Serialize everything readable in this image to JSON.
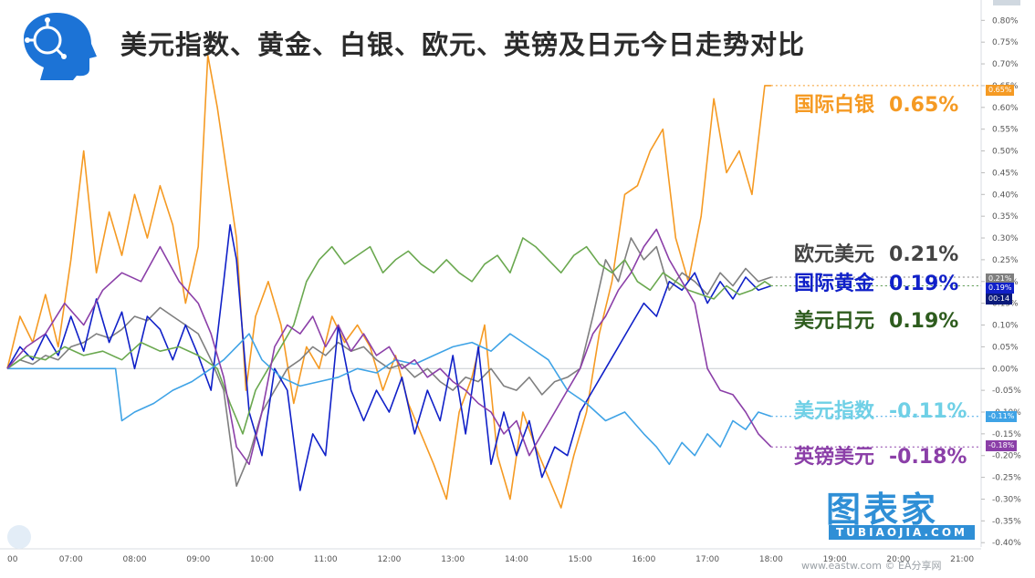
{
  "header": {
    "title": "美元指数、黄金、白银、欧元、英镑及日元今日走势对比"
  },
  "watermark": {
    "brand": "图表家",
    "sub": "TUBIAOJIA.COM"
  },
  "source_text": "www.eastw.com © EA分享网",
  "time_badge": "00:14",
  "colors": {
    "silver": "#f59a23",
    "eurusd": "#7f7f7f",
    "gold": "#1020c8",
    "usdjpy": "#6aa84f",
    "dxy": "#3fa3e6",
    "gbpusd": "#8b3fa8"
  },
  "chart_data": {
    "type": "line",
    "title": "美元指数、黄金、白银、欧元、英镑及日元今日走势对比",
    "xlabel": "",
    "ylabel": "",
    "x_ticks": [
      "00",
      "07:00",
      "08:00",
      "09:00",
      "10:00",
      "11:00",
      "12:00",
      "13:00",
      "14:00",
      "15:00",
      "16:00",
      "17:00",
      "18:00",
      "19:00",
      "20:00",
      "21:00"
    ],
    "y_ticks": [
      "0.80%",
      "0.75%",
      "0.70%",
      "0.65%",
      "0.60%",
      "0.55%",
      "0.50%",
      "0.45%",
      "0.40%",
      "0.35%",
      "0.30%",
      "0.25%",
      "0.20%",
      "0.15%",
      "0.10%",
      "0.05%",
      "0.00%",
      "-0.05%",
      "-0.10%",
      "-0.15%",
      "-0.20%",
      "-0.25%",
      "-0.30%",
      "-0.35%",
      "-0.40%"
    ],
    "ylim": [
      -0.41,
      0.83
    ],
    "xlim_hours": [
      6.0,
      21.3
    ],
    "grid": false,
    "legend_placement": "right",
    "series": [
      {
        "key": "silver",
        "name": "国际白银",
        "last_label": "0.65%",
        "last": 0.65,
        "x": [
          6.0,
          6.2,
          6.4,
          6.6,
          6.8,
          7.0,
          7.2,
          7.4,
          7.6,
          7.8,
          8.0,
          8.2,
          8.4,
          8.6,
          8.8,
          9.0,
          9.15,
          9.3,
          9.45,
          9.6,
          9.75,
          9.9,
          10.1,
          10.3,
          10.5,
          10.7,
          10.9,
          11.1,
          11.3,
          11.5,
          11.7,
          11.9,
          12.1,
          12.3,
          12.5,
          12.7,
          12.9,
          13.1,
          13.3,
          13.5,
          13.7,
          13.9,
          14.1,
          14.3,
          14.5,
          14.7,
          14.9,
          15.1,
          15.3,
          15.5,
          15.7,
          15.9,
          16.1,
          16.3,
          16.5,
          16.7,
          16.9,
          17.1,
          17.3,
          17.5,
          17.7,
          17.9,
          18.0
        ],
        "y": [
          0.0,
          0.12,
          0.06,
          0.17,
          0.05,
          0.25,
          0.5,
          0.22,
          0.36,
          0.26,
          0.4,
          0.3,
          0.42,
          0.33,
          0.15,
          0.28,
          0.72,
          0.6,
          0.45,
          0.3,
          -0.05,
          0.12,
          0.2,
          0.1,
          -0.08,
          0.05,
          0.0,
          0.12,
          0.06,
          0.1,
          0.05,
          -0.05,
          0.03,
          -0.08,
          -0.15,
          -0.22,
          -0.3,
          -0.1,
          -0.02,
          0.1,
          -0.2,
          -0.3,
          -0.1,
          -0.18,
          -0.25,
          -0.32,
          -0.2,
          -0.1,
          0.08,
          0.2,
          0.4,
          0.42,
          0.5,
          0.55,
          0.3,
          0.2,
          0.35,
          0.62,
          0.45,
          0.5,
          0.4,
          0.65,
          0.65
        ]
      },
      {
        "key": "eurusd",
        "name": "欧元美元",
        "last_label": "0.21%",
        "last": 0.21,
        "x": [
          6.0,
          6.2,
          6.4,
          6.6,
          6.8,
          7.0,
          7.2,
          7.4,
          7.6,
          7.8,
          8.0,
          8.2,
          8.4,
          8.6,
          8.8,
          9.0,
          9.2,
          9.4,
          9.6,
          9.8,
          10.0,
          10.2,
          10.4,
          10.6,
          10.8,
          11.0,
          11.2,
          11.4,
          11.6,
          11.8,
          12.0,
          12.2,
          12.4,
          12.6,
          12.8,
          13.0,
          13.2,
          13.4,
          13.6,
          13.8,
          14.0,
          14.2,
          14.4,
          14.6,
          14.8,
          15.0,
          15.2,
          15.4,
          15.6,
          15.8,
          16.0,
          16.2,
          16.4,
          16.6,
          16.8,
          17.0,
          17.2,
          17.4,
          17.6,
          17.8,
          18.0
        ],
        "y": [
          0.0,
          0.02,
          0.01,
          0.03,
          0.02,
          0.05,
          0.06,
          0.08,
          0.07,
          0.09,
          0.12,
          0.11,
          0.14,
          0.12,
          0.1,
          0.08,
          0.02,
          -0.05,
          -0.27,
          -0.2,
          -0.1,
          -0.05,
          0.0,
          0.02,
          0.05,
          0.03,
          0.06,
          0.04,
          0.05,
          0.02,
          0.0,
          0.01,
          -0.02,
          0.0,
          -0.03,
          -0.05,
          -0.02,
          -0.03,
          0.0,
          -0.04,
          -0.05,
          -0.02,
          -0.06,
          -0.03,
          -0.02,
          0.0,
          0.12,
          0.25,
          0.2,
          0.3,
          0.25,
          0.28,
          0.18,
          0.22,
          0.2,
          0.17,
          0.22,
          0.19,
          0.23,
          0.2,
          0.21
        ]
      },
      {
        "key": "gold",
        "name": "国际黄金",
        "last_label": "0.19%",
        "last": 0.19,
        "x": [
          6.0,
          6.2,
          6.4,
          6.6,
          6.8,
          7.0,
          7.2,
          7.4,
          7.6,
          7.8,
          8.0,
          8.2,
          8.4,
          8.6,
          8.8,
          9.0,
          9.2,
          9.4,
          9.5,
          9.6,
          9.8,
          10.0,
          10.2,
          10.4,
          10.6,
          10.8,
          11.0,
          11.2,
          11.4,
          11.6,
          11.8,
          12.0,
          12.2,
          12.4,
          12.6,
          12.8,
          13.0,
          13.2,
          13.4,
          13.6,
          13.8,
          14.0,
          14.2,
          14.4,
          14.6,
          14.8,
          15.0,
          15.2,
          15.4,
          15.6,
          15.8,
          16.0,
          16.2,
          16.4,
          16.6,
          16.8,
          17.0,
          17.2,
          17.4,
          17.6,
          17.8,
          18.0
        ],
        "y": [
          0.0,
          0.05,
          0.02,
          0.08,
          0.03,
          0.12,
          0.04,
          0.16,
          0.06,
          0.13,
          0.0,
          0.12,
          0.09,
          0.02,
          0.1,
          0.03,
          -0.05,
          0.2,
          0.33,
          0.25,
          -0.1,
          -0.2,
          0.0,
          -0.05,
          -0.28,
          -0.15,
          -0.2,
          0.1,
          -0.05,
          -0.12,
          -0.05,
          -0.1,
          -0.02,
          -0.15,
          -0.05,
          -0.12,
          0.03,
          -0.15,
          0.05,
          -0.22,
          -0.1,
          -0.2,
          -0.12,
          -0.25,
          -0.18,
          -0.2,
          -0.1,
          -0.05,
          0.0,
          0.05,
          0.1,
          0.15,
          0.12,
          0.2,
          0.18,
          0.22,
          0.15,
          0.2,
          0.16,
          0.21,
          0.18,
          0.19
        ]
      },
      {
        "key": "usdjpy",
        "name": "美元日元",
        "last_label": "0.19%",
        "last": 0.19,
        "x": [
          6.0,
          6.3,
          6.6,
          6.9,
          7.2,
          7.5,
          7.8,
          8.1,
          8.4,
          8.7,
          9.0,
          9.3,
          9.5,
          9.7,
          9.9,
          10.1,
          10.3,
          10.5,
          10.7,
          10.9,
          11.1,
          11.3,
          11.5,
          11.7,
          11.9,
          12.1,
          12.3,
          12.5,
          12.7,
          12.9,
          13.1,
          13.3,
          13.5,
          13.7,
          13.9,
          14.1,
          14.3,
          14.5,
          14.7,
          14.9,
          15.1,
          15.3,
          15.5,
          15.7,
          15.9,
          16.1,
          16.3,
          16.5,
          16.7,
          16.9,
          17.1,
          17.3,
          17.5,
          17.7,
          17.9,
          18.0
        ],
        "y": [
          0.0,
          0.03,
          0.02,
          0.05,
          0.03,
          0.04,
          0.02,
          0.06,
          0.04,
          0.05,
          0.03,
          0.0,
          -0.08,
          -0.15,
          -0.05,
          0.0,
          0.05,
          0.1,
          0.2,
          0.25,
          0.28,
          0.24,
          0.26,
          0.28,
          0.22,
          0.25,
          0.27,
          0.24,
          0.22,
          0.25,
          0.22,
          0.2,
          0.24,
          0.26,
          0.22,
          0.3,
          0.28,
          0.25,
          0.22,
          0.26,
          0.28,
          0.24,
          0.22,
          0.25,
          0.2,
          0.18,
          0.22,
          0.2,
          0.18,
          0.17,
          0.16,
          0.19,
          0.17,
          0.18,
          0.2,
          0.19
        ]
      },
      {
        "key": "dxy",
        "name": "美元指数",
        "last_label": "-0.11%",
        "last": -0.11,
        "x": [
          6.0,
          6.5,
          7.0,
          7.5,
          7.7,
          7.8,
          8.0,
          8.3,
          8.6,
          8.9,
          9.2,
          9.4,
          9.6,
          9.8,
          10.0,
          10.3,
          10.6,
          10.9,
          11.2,
          11.5,
          11.8,
          12.1,
          12.4,
          12.7,
          13.0,
          13.3,
          13.6,
          13.9,
          14.2,
          14.5,
          14.8,
          15.1,
          15.4,
          15.7,
          16.0,
          16.2,
          16.4,
          16.6,
          16.8,
          17.0,
          17.2,
          17.4,
          17.6,
          17.8,
          18.0
        ],
        "y": [
          0.0,
          0.0,
          0.0,
          0.0,
          0.0,
          -0.12,
          -0.1,
          -0.08,
          -0.05,
          -0.03,
          0.0,
          0.02,
          0.05,
          0.08,
          0.02,
          -0.02,
          -0.04,
          -0.03,
          -0.02,
          0.0,
          -0.01,
          0.02,
          0.01,
          0.03,
          0.05,
          0.06,
          0.04,
          0.08,
          0.05,
          0.02,
          -0.05,
          -0.08,
          -0.12,
          -0.1,
          -0.15,
          -0.18,
          -0.22,
          -0.17,
          -0.2,
          -0.15,
          -0.18,
          -0.12,
          -0.14,
          -0.1,
          -0.11
        ]
      },
      {
        "key": "gbpusd",
        "name": "英镑美元",
        "last_label": "-0.18%",
        "last": -0.18,
        "x": [
          6.0,
          6.3,
          6.6,
          6.9,
          7.2,
          7.5,
          7.8,
          8.1,
          8.4,
          8.7,
          9.0,
          9.2,
          9.4,
          9.6,
          9.8,
          10.0,
          10.2,
          10.4,
          10.6,
          10.8,
          11.0,
          11.2,
          11.4,
          11.6,
          11.8,
          12.0,
          12.2,
          12.4,
          12.6,
          12.8,
          13.0,
          13.2,
          13.4,
          13.6,
          13.8,
          14.0,
          14.2,
          14.4,
          14.6,
          14.8,
          15.0,
          15.2,
          15.4,
          15.6,
          15.8,
          16.0,
          16.2,
          16.4,
          16.6,
          16.8,
          17.0,
          17.2,
          17.4,
          17.6,
          17.8,
          18.0
        ],
        "y": [
          0.0,
          0.05,
          0.08,
          0.15,
          0.1,
          0.18,
          0.22,
          0.2,
          0.28,
          0.2,
          0.15,
          0.08,
          -0.02,
          -0.18,
          -0.22,
          -0.1,
          0.05,
          0.1,
          0.08,
          0.12,
          0.05,
          0.1,
          0.04,
          0.08,
          0.03,
          0.05,
          0.0,
          0.02,
          -0.02,
          0.0,
          -0.03,
          -0.05,
          -0.08,
          -0.1,
          -0.15,
          -0.12,
          -0.2,
          -0.15,
          -0.1,
          -0.05,
          0.0,
          0.08,
          0.12,
          0.18,
          0.22,
          0.28,
          0.32,
          0.25,
          0.2,
          0.15,
          0.0,
          -0.05,
          -0.06,
          -0.1,
          -0.15,
          -0.18
        ]
      }
    ]
  }
}
